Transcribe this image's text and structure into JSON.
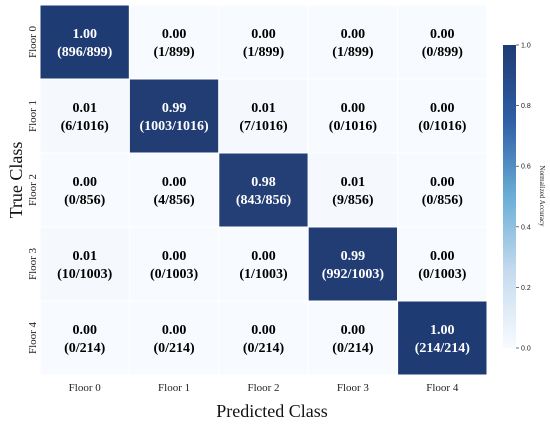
{
  "chart_data": {
    "type": "heatmap",
    "title": "",
    "xlabel": "Predicted Class",
    "ylabel": "True Class",
    "x_categories": [
      "Floor 0",
      "Floor 1",
      "Floor 2",
      "Floor 3",
      "Floor 4"
    ],
    "y_categories": [
      "Floor 0",
      "Floor 1",
      "Floor 2",
      "Floor 3",
      "Floor 4"
    ],
    "values": [
      [
        1.0,
        0.0,
        0.0,
        0.0,
        0.0
      ],
      [
        0.01,
        0.99,
        0.01,
        0.0,
        0.0
      ],
      [
        0.0,
        0.0,
        0.98,
        0.01,
        0.0
      ],
      [
        0.01,
        0.0,
        0.0,
        0.99,
        0.0
      ],
      [
        0.0,
        0.0,
        0.0,
        0.0,
        1.0
      ]
    ],
    "value_labels": [
      [
        "1.00",
        "0.00",
        "0.00",
        "0.00",
        "0.00"
      ],
      [
        "0.01",
        "0.99",
        "0.01",
        "0.00",
        "0.00"
      ],
      [
        "0.00",
        "0.00",
        "0.98",
        "0.01",
        "0.00"
      ],
      [
        "0.01",
        "0.00",
        "0.00",
        "0.99",
        "0.00"
      ],
      [
        "0.00",
        "0.00",
        "0.00",
        "0.00",
        "1.00"
      ]
    ],
    "count_labels": [
      [
        "(896/899)",
        "(1/899)",
        "(1/899)",
        "(1/899)",
        "(0/899)"
      ],
      [
        "(6/1016)",
        "(1003/1016)",
        "(7/1016)",
        "(0/1016)",
        "(0/1016)"
      ],
      [
        "(0/856)",
        "(4/856)",
        "(843/856)",
        "(9/856)",
        "(0/856)"
      ],
      [
        "(10/1003)",
        "(0/1003)",
        "(1/1003)",
        "(992/1003)",
        "(0/1003)"
      ],
      [
        "(0/214)",
        "(0/214)",
        "(0/214)",
        "(0/214)",
        "(214/214)"
      ]
    ],
    "colorbar": {
      "label": "Normalized Accuracy",
      "range": [
        0.0,
        1.0
      ],
      "ticks": [
        "0.0",
        "0.2",
        "0.4",
        "0.6",
        "0.8",
        "1.0"
      ],
      "colormap": [
        "#f7fbff",
        "#1f3b73"
      ]
    },
    "colors": {
      "low": "#f7fbff",
      "high": "#1f3b73",
      "text_on_dark": "#ffffff",
      "text_on_light": "#000000"
    }
  }
}
